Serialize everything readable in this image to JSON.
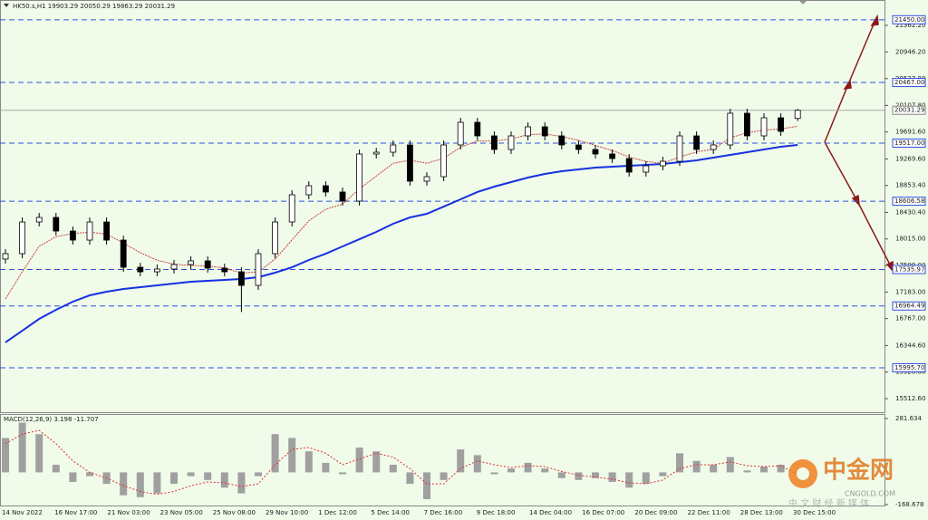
{
  "chart_data": [
    {
      "type": "candlestick",
      "title": "HK50.s,H1  19903.29 20050.29 19863.29 20031.29",
      "open": [
        17700,
        17784,
        18281,
        18352,
        18139,
        17997,
        18281,
        17997,
        17571,
        17500,
        17543,
        17614,
        17671,
        17557,
        17500,
        17287,
        17784,
        18281,
        18707,
        18849,
        18750,
        18608,
        19346,
        19374,
        19488,
        18920,
        18991,
        19488,
        19843,
        19630,
        19417,
        19630,
        19772,
        19630,
        19488,
        19417,
        19346,
        19275,
        19062,
        19161,
        19232,
        19630,
        19417,
        19488,
        19985,
        19630,
        19914,
        19903.29
      ],
      "high": [
        17854,
        18351,
        18422,
        18422,
        18209,
        18351,
        18351,
        18067,
        17641,
        17613,
        17684,
        17741,
        17741,
        17627,
        17570,
        17854,
        18351,
        18777,
        18919,
        18919,
        18820,
        19416,
        19444,
        19558,
        19558,
        19061,
        19558,
        19913,
        19913,
        19700,
        19700,
        19842,
        19842,
        19700,
        19558,
        19487,
        19416,
        19345,
        19231,
        19302,
        19700,
        19700,
        19558,
        20055,
        20055,
        19984,
        19984,
        20050.29
      ],
      "low": [
        17630,
        17714,
        18211,
        18069,
        17927,
        17927,
        17927,
        17501,
        17430,
        17430,
        17473,
        17544,
        17487,
        17430,
        16870,
        17217,
        17714,
        18211,
        18637,
        18680,
        18538,
        18538,
        19276,
        19304,
        18850,
        18850,
        18921,
        19418,
        19560,
        19347,
        19347,
        19560,
        19560,
        19418,
        19347,
        19276,
        19205,
        18992,
        18992,
        19091,
        19162,
        19347,
        19347,
        19418,
        19560,
        19560,
        19631,
        19863.29
      ],
      "close": [
        17784,
        18281,
        18352,
        18139,
        17997,
        18281,
        17997,
        17571,
        17500,
        17543,
        17614,
        17671,
        17557,
        17500,
        17287,
        17784,
        18281,
        18707,
        18849,
        18750,
        18608,
        19346,
        19374,
        19488,
        18920,
        18991,
        19488,
        19843,
        19630,
        19417,
        19630,
        19772,
        19630,
        19488,
        19417,
        19346,
        19275,
        19062,
        19161,
        19232,
        19630,
        19417,
        19488,
        19985,
        19630,
        19914,
        19701,
        20031.29
      ],
      "series": [
        {
          "color": "#d04040",
          "values": [
            17074,
            17500,
            17900,
            18050,
            18100,
            18120,
            18090,
            17950,
            17800,
            17680,
            17620,
            17600,
            17590,
            17560,
            17480,
            17500,
            17700,
            18000,
            18300,
            18480,
            18560,
            18800,
            19000,
            19200,
            19250,
            19200,
            19280,
            19450,
            19550,
            19550,
            19580,
            19650,
            19660,
            19620,
            19560,
            19480,
            19400,
            19300,
            19230,
            19200,
            19300,
            19380,
            19420,
            19600,
            19680,
            19720,
            19740,
            19780
          ]
        },
        {
          "color": "#1530e0",
          "values": [
            16393,
            16577,
            16762,
            16904,
            17032,
            17131,
            17188,
            17230,
            17259,
            17287,
            17316,
            17344,
            17358,
            17372,
            17387,
            17415,
            17486,
            17571,
            17685,
            17784,
            17898,
            18011,
            18125,
            18253,
            18352,
            18409,
            18522,
            18636,
            18750,
            18835,
            18906,
            18977,
            19034,
            19076,
            19105,
            19133,
            19147,
            19161,
            19176,
            19190,
            19218,
            19246,
            19289,
            19332,
            19374,
            19417,
            19459,
            19488
          ]
        }
      ],
      "ylim": [
        15299.6,
        21759.7
      ],
      "yticks": [
        {
          "value": 21362.2,
          "label": "21362.20"
        },
        {
          "value": 20946.2,
          "label": "20946.20"
        },
        {
          "value": 20527.8,
          "label": "20527.80"
        },
        {
          "value": 20107.8,
          "label": "20107.80"
        },
        {
          "value": 19691.6,
          "label": "19691.60"
        },
        {
          "value": 19269.6,
          "label": "19269.60"
        },
        {
          "value": 18853.4,
          "label": "18853.40"
        },
        {
          "value": 18430.4,
          "label": "18430.40"
        },
        {
          "value": 18015,
          "label": "18015.00"
        },
        {
          "value": 17599,
          "label": "17599.00"
        },
        {
          "value": 17183,
          "label": "17183.00"
        },
        {
          "value": 16767,
          "label": "16767.00"
        },
        {
          "value": 16344.6,
          "label": "16344.60"
        },
        {
          "value": 15928.6,
          "label": "15928.60"
        },
        {
          "value": 15512.6,
          "label": "15512.60"
        }
      ],
      "levels": [
        {
          "value": 21450,
          "label": "21450.00"
        },
        {
          "value": 20467,
          "label": "20467.00"
        },
        {
          "value": 19517,
          "label": "19517.00"
        },
        {
          "value": 18606.58,
          "label": "18606.58"
        },
        {
          "value": 17535.97,
          "label": "17535.97"
        },
        {
          "value": 16964.49,
          "label": "16964.49"
        },
        {
          "value": 15995.7,
          "label": "15995.70"
        }
      ],
      "level_color": "#3050e0",
      "current_price": 20031.29,
      "x_labels": [
        "14 Nov 2022",
        "16 Nov 17:00",
        "21 Nov 03:00",
        "23 Nov 05:00",
        "25 Nov 08:00",
        "29 Nov 10:00",
        "1 Dec 12:00",
        "5 Dec 14:00",
        "7 Dec 16:00",
        "9 Dec 18:00",
        "14 Dec 04:00",
        "16 Dec 07:00",
        "20 Dec 09:00",
        "22 Dec 11:00",
        "28 Dec 13:00",
        "30 Dec 15:00"
      ]
    },
    {
      "type": "macd",
      "title": "MACD(12,26,9) 3.198 -11.707",
      "values": [
        180,
        260,
        200,
        40,
        -50,
        -20,
        -60,
        -120,
        -130,
        -110,
        -60,
        -20,
        -40,
        -80,
        -110,
        -20,
        200,
        180,
        110,
        50,
        -10,
        130,
        110,
        40,
        -60,
        -140,
        -40,
        120,
        90,
        -10,
        20,
        50,
        20,
        -30,
        -40,
        -30,
        -50,
        -80,
        -60,
        -20,
        100,
        60,
        40,
        80,
        10,
        30,
        40,
        3.198
      ],
      "signal": [
        150,
        200,
        220,
        150,
        60,
        0,
        -30,
        -70,
        -100,
        -115,
        -100,
        -70,
        -50,
        -55,
        -75,
        -60,
        40,
        120,
        130,
        100,
        40,
        70,
        100,
        80,
        20,
        -60,
        -60,
        20,
        60,
        40,
        25,
        35,
        30,
        5,
        -15,
        -25,
        -35,
        -55,
        -60,
        -40,
        20,
        40,
        40,
        55,
        35,
        30,
        35,
        -11.707
      ],
      "color": "#a0a0a0",
      "signal_color": "#e03030",
      "ylim": [
        -173.4,
        300.6
      ],
      "yticks": [
        281.634,
        -168.678
      ]
    }
  ],
  "watermark": {
    "name": "中金网",
    "site": "CNGOLD.COM",
    "slogan": "中 文 财 经 新 媒 体"
  }
}
